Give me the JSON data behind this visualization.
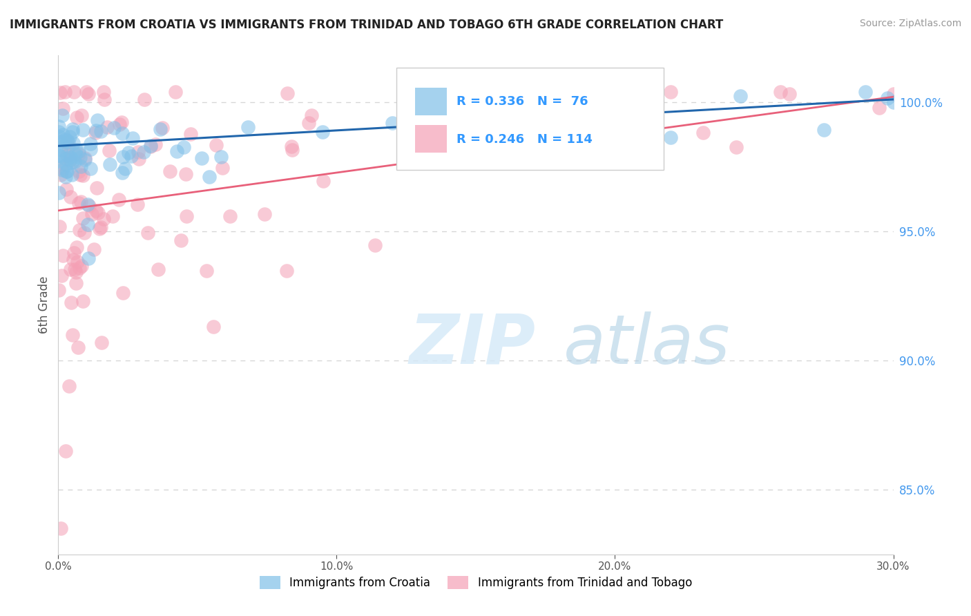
{
  "title": "IMMIGRANTS FROM CROATIA VS IMMIGRANTS FROM TRINIDAD AND TOBAGO 6TH GRADE CORRELATION CHART",
  "source": "Source: ZipAtlas.com",
  "ylabel": "6th Grade",
  "right_yticks": [
    85.0,
    90.0,
    95.0,
    100.0
  ],
  "xmin": 0.0,
  "xmax": 30.0,
  "ymin": 82.5,
  "ymax": 101.8,
  "croatia_R": 0.336,
  "croatia_N": 76,
  "tt_R": 0.246,
  "tt_N": 114,
  "croatia_color": "#7fbfe8",
  "tt_color": "#f4a0b5",
  "croatia_trend_color": "#2166ac",
  "tt_trend_color": "#e8607a",
  "legend_color": "#3399ff",
  "background_color": "#ffffff",
  "grid_color": "#cccccc",
  "title_color": "#222222",
  "croatia_trend_y0": 98.3,
  "croatia_trend_y1": 100.1,
  "tt_trend_y0": 95.8,
  "tt_trend_y1": 100.2
}
